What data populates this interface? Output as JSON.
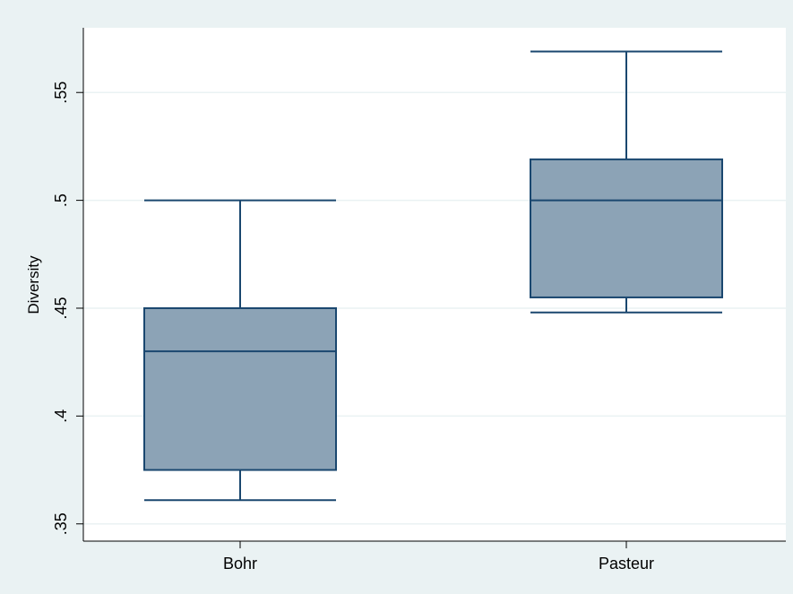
{
  "chart_data": {
    "type": "box",
    "categories": [
      "Bohr",
      "Pasteur"
    ],
    "boxes": [
      {
        "category": "Bohr",
        "whisker_low": 0.361,
        "q1": 0.375,
        "median": 0.43,
        "q3": 0.45,
        "whisker_high": 0.5
      },
      {
        "category": "Pasteur",
        "whisker_low": 0.448,
        "q1": 0.455,
        "median": 0.5,
        "q3": 0.519,
        "whisker_high": 0.569
      }
    ],
    "ylabel": "Diversity",
    "xlabel": "",
    "yticks": [
      0.35,
      0.4,
      0.45,
      0.5,
      0.55
    ],
    "ytick_labels": [
      ".35",
      ".4",
      ".45",
      ".5",
      ".55"
    ],
    "ylim": [
      0.342,
      0.58
    ],
    "grid": true,
    "colors": {
      "background": "#eaf2f3",
      "plot_area": "#ffffff",
      "box_fill": "#8ca3b6",
      "box_stroke": "#1a476f",
      "grid": "#eaf2f3",
      "axis": "#000000"
    }
  }
}
